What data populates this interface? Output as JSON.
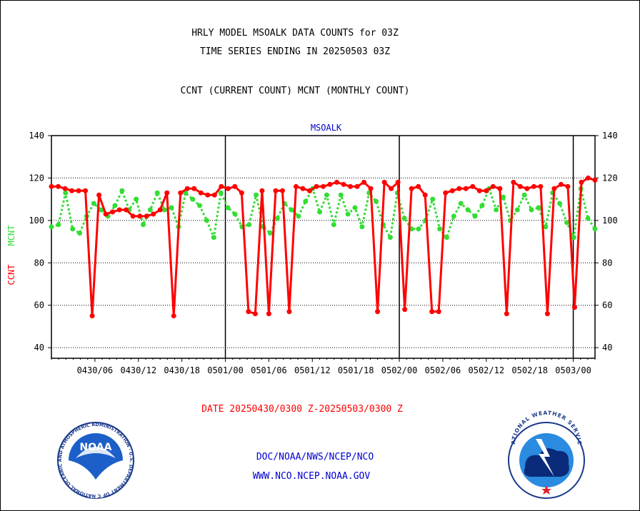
{
  "header": {
    "title_line1": "HRLY MODEL MSOALK DATA COUNTS for 03Z",
    "title_line2": "TIME SERIES ENDING IN 20250503 03Z",
    "subtitle": "CCNT (CURRENT COUNT) MCNT (MONTHLY COUNT)"
  },
  "footer": {
    "date_range": "DATE 20250430/0300 Z-20250503/0300 Z",
    "org_path": "DOC/NOAA/NWS/NCEP/NCO",
    "website": "WWW.NCO.NCEP.NOAA.GOV"
  },
  "logos": {
    "noaa_text": "NOAA",
    "noaa_ring": "NATIONAL OCEANIC AND ATMOSPHERIC ADMINISTRATION · U.S. DEPARTMENT OF COMMERCE ·",
    "nws_ring": "NATIONAL WEATHER SERVICE"
  },
  "colors": {
    "ccnt": "#ff0000",
    "mcnt": "#33dd33",
    "title": "#0000cc",
    "axis": "#000000"
  },
  "chart_data": {
    "type": "line",
    "title": "MSOALK",
    "ylabel_left_ccnt": "CCNT",
    "ylabel_left_mcnt": "MCNT",
    "ylim": [
      35,
      140
    ],
    "yticks": [
      40,
      60,
      80,
      100,
      120,
      140
    ],
    "x_tick_labels": [
      "0430/06",
      "0430/12",
      "0430/18",
      "0501/00",
      "0501/06",
      "0501/12",
      "0501/18",
      "0502/00",
      "0502/06",
      "0502/12",
      "0502/18",
      "0503/00"
    ],
    "x_tick_hours": [
      6,
      12,
      18,
      24,
      30,
      36,
      42,
      48,
      54,
      60,
      66,
      72
    ],
    "day_boundary_hours": [
      24,
      48,
      72
    ],
    "x_range_hours": [
      0,
      75
    ],
    "x_origin": "20250430/00",
    "grid": "horizontal dotted",
    "series": [
      {
        "name": "CCNT",
        "style": "solid",
        "values": [
          116,
          116,
          115,
          114,
          114,
          114,
          55,
          112,
          103,
          104,
          105,
          105,
          102,
          102,
          102,
          103,
          105,
          113,
          55,
          113,
          115,
          115,
          113,
          112,
          112,
          116,
          115,
          116,
          113,
          57,
          56,
          114,
          56,
          114,
          114,
          57,
          116,
          115,
          114,
          116,
          116,
          117,
          118,
          117,
          116,
          116,
          118,
          115,
          57,
          118,
          115,
          118,
          58,
          115,
          116,
          112,
          57,
          57,
          113,
          114,
          115,
          115,
          116,
          114,
          114,
          116,
          115,
          56,
          118,
          116,
          115,
          116,
          116,
          56,
          115,
          117,
          116,
          59,
          118,
          120,
          119
        ]
      },
      {
        "name": "MCNT",
        "style": "dotted",
        "values": [
          97,
          98,
          113,
          96,
          94,
          102,
          108,
          105,
          102,
          107,
          114,
          105,
          110,
          98,
          105,
          113,
          105,
          106,
          97,
          113,
          110,
          107,
          100,
          92,
          113,
          106,
          103,
          97,
          98,
          112,
          97,
          94,
          101,
          108,
          105,
          102,
          109,
          115,
          104,
          112,
          98,
          112,
          103,
          106,
          97,
          113,
          109,
          98,
          92,
          113,
          101,
          96,
          96,
          100,
          110,
          96,
          92,
          102,
          108,
          105,
          102,
          107,
          115,
          105,
          111,
          100,
          105,
          112,
          105,
          106,
          97,
          113,
          108,
          99,
          92,
          115,
          101,
          96
        ]
      }
    ]
  }
}
